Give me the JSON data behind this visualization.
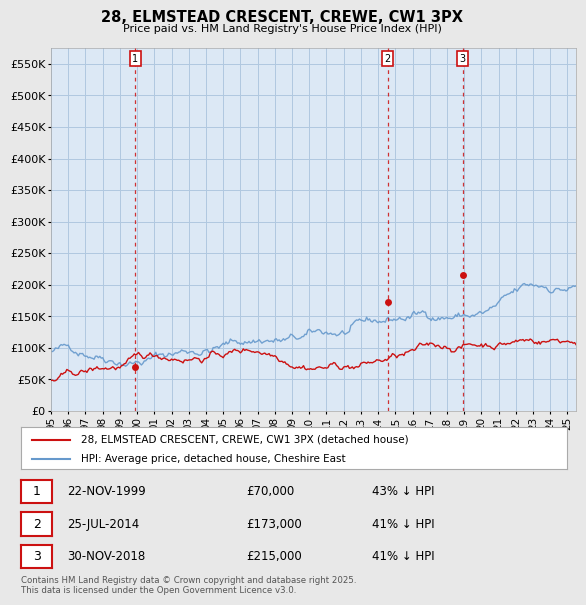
{
  "title": "28, ELMSTEAD CRESCENT, CREWE, CW1 3PX",
  "subtitle": "Price paid vs. HM Land Registry's House Price Index (HPI)",
  "background_color": "#e8e8e8",
  "plot_bg_color": "#dce8f5",
  "grid_color": "#b0c8e0",
  "hpi_color": "#6699cc",
  "price_color": "#cc1111",
  "dashed_color": "#cc1111",
  "ylim": [
    0,
    575000
  ],
  "yticks": [
    0,
    50000,
    100000,
    150000,
    200000,
    250000,
    300000,
    350000,
    400000,
    450000,
    500000,
    550000
  ],
  "ytick_labels": [
    "£0",
    "£50K",
    "£100K",
    "£150K",
    "£200K",
    "£250K",
    "£300K",
    "£350K",
    "£400K",
    "£450K",
    "£500K",
    "£550K"
  ],
  "xlim_start": 1995.0,
  "xlim_end": 2025.5,
  "xtick_years": [
    1995,
    1996,
    1997,
    1998,
    1999,
    2000,
    2001,
    2002,
    2003,
    2004,
    2005,
    2006,
    2007,
    2008,
    2009,
    2010,
    2011,
    2012,
    2013,
    2014,
    2015,
    2016,
    2017,
    2018,
    2019,
    2020,
    2021,
    2022,
    2023,
    2024,
    2025
  ],
  "sale_events": [
    {
      "num": 1,
      "year": 1999.89,
      "price": 70000,
      "label": "22-NOV-1999",
      "price_label": "£70,000",
      "hpi_label": "43% ↓ HPI"
    },
    {
      "num": 2,
      "year": 2014.56,
      "price": 173000,
      "label": "25-JUL-2014",
      "price_label": "£173,000",
      "hpi_label": "41% ↓ HPI"
    },
    {
      "num": 3,
      "year": 2018.92,
      "price": 215000,
      "label": "30-NOV-2018",
      "price_label": "£215,000",
      "hpi_label": "41% ↓ HPI"
    }
  ],
  "legend_label_price": "28, ELMSTEAD CRESCENT, CREWE, CW1 3PX (detached house)",
  "legend_label_hpi": "HPI: Average price, detached house, Cheshire East",
  "footer_text": "Contains HM Land Registry data © Crown copyright and database right 2025.\nThis data is licensed under the Open Government Licence v3.0."
}
